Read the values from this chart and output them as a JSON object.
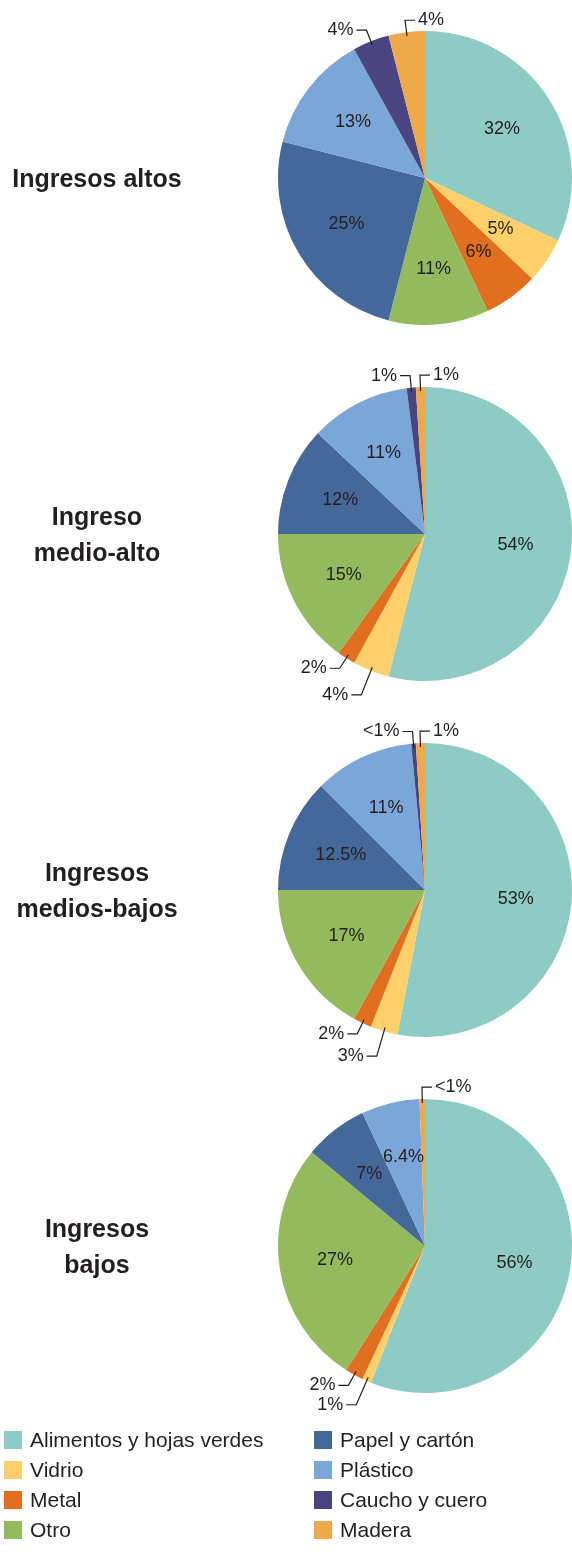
{
  "chart_data": [
    {
      "type": "pie",
      "title": "Ingresos altos",
      "values": [
        32,
        5,
        6,
        11,
        25,
        13,
        4,
        4
      ],
      "value_labels": [
        "32%",
        "5%",
        "6%",
        "11%",
        "25%",
        "13%",
        "4%",
        "4%"
      ],
      "colors": [
        "#8fcbc5",
        "#fdd06b",
        "#e06f1f",
        "#93bb5e",
        "#44689a",
        "#7ba7d8",
        "#4a4580",
        "#eea94b"
      ]
    },
    {
      "type": "pie",
      "title": "Ingreso medio-alto",
      "values": [
        54,
        4,
        2,
        15,
        12,
        11,
        1,
        1
      ],
      "value_labels": [
        "54%",
        "4%",
        "2%",
        "15%",
        "12%",
        "11%",
        "1%",
        "1%"
      ],
      "colors": [
        "#8fcbc5",
        "#fdd06b",
        "#e06f1f",
        "#93bb5e",
        "#44689a",
        "#7ba7d8",
        "#4a4580",
        "#eea94b"
      ]
    },
    {
      "type": "pie",
      "title": "Ingresos medios-bajos",
      "values": [
        53,
        3,
        2,
        17,
        12.5,
        11,
        0.5,
        1
      ],
      "value_labels": [
        "53%",
        "3%",
        "2%",
        "17%",
        "12.5%",
        "11%",
        "<1%",
        "1%"
      ],
      "colors": [
        "#8fcbc5",
        "#fdd06b",
        "#e06f1f",
        "#93bb5e",
        "#44689a",
        "#7ba7d8",
        "#4a4580",
        "#eea94b"
      ]
    },
    {
      "type": "pie",
      "title": "Ingresos bajos",
      "categories": [
        "Alimentos y hojas verdes",
        "Vidrio",
        "Metal",
        "Otro",
        "Papel y cartón",
        "Plástico",
        "Caucho y cuero",
        "Madera"
      ],
      "values": [
        56,
        1,
        2,
        27,
        7,
        6.4,
        0,
        0.6
      ],
      "value_labels": [
        "56%",
        "1%",
        "2%",
        "27%",
        "7%",
        "6.4%",
        null,
        "<1%"
      ],
      "colors": [
        "#8fcbc5",
        "#fdd06b",
        "#e06f1f",
        "#93bb5e",
        "#44689a",
        "#7ba7d8",
        "#4a4580",
        "#eea94b"
      ],
      "legend": "bottom"
    }
  ]
}
